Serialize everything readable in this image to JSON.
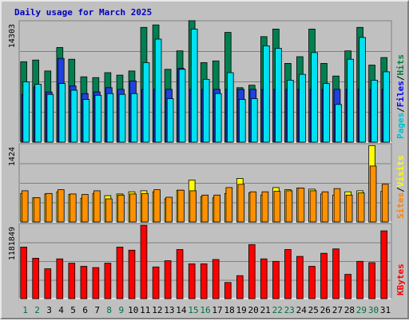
{
  "chart_data": [
    {
      "type": "bar",
      "title": "Daily usage for March 2025",
      "ymax_label": "14303",
      "ylim": [
        0,
        14303
      ],
      "legend": [
        {
          "label": "Pages",
          "color": "#00c0d0"
        },
        {
          "label": "Files",
          "color": "#0000ff"
        },
        {
          "label": "Hits",
          "color": "#008040"
        }
      ],
      "separator": "/",
      "categories": [
        "1",
        "2",
        "3",
        "4",
        "5",
        "6",
        "7",
        "8",
        "9",
        "10",
        "11",
        "12",
        "13",
        "14",
        "15",
        "16",
        "17",
        "18",
        "19",
        "20",
        "21",
        "22",
        "23",
        "24",
        "25",
        "26",
        "27",
        "28",
        "29",
        "30",
        "31"
      ],
      "series": [
        {
          "name": "Hits",
          "color": "#008050",
          "values": [
            9600,
            9800,
            8500,
            11300,
            9900,
            7800,
            7700,
            8300,
            8000,
            8500,
            13700,
            14000,
            8700,
            10900,
            14500,
            9500,
            9700,
            13100,
            6500,
            6800,
            12600,
            13500,
            9400,
            10200,
            13500,
            9400,
            7900,
            10900,
            13700,
            9200,
            10100
          ]
        },
        {
          "name": "Files",
          "color": "#2040e0",
          "values": [
            5700,
            6600,
            6000,
            10000,
            6700,
            5800,
            6000,
            6500,
            6300,
            7300,
            6300,
            6300,
            6300,
            8800,
            6300,
            6300,
            6300,
            6300,
            6300,
            6300,
            6300,
            6300,
            6300,
            6300,
            6300,
            6300,
            6300,
            6300,
            6300,
            6300,
            6300
          ]
        },
        {
          "name": "Pages",
          "color": "#00e0f0",
          "values": [
            7200,
            6900,
            5700,
            7000,
            6200,
            5100,
            5600,
            5800,
            5700,
            5800,
            9500,
            12300,
            5200,
            8700,
            13500,
            7500,
            5800,
            8300,
            5100,
            5200,
            11500,
            11200,
            7400,
            8100,
            10700,
            7000,
            4500,
            9900,
            12500,
            7400,
            8400
          ]
        }
      ]
    },
    {
      "type": "bar",
      "ymax_label": "1424",
      "ylim": [
        0,
        1424
      ],
      "legend": [
        {
          "label": "Sites",
          "color": "#ff8000"
        },
        {
          "label": "Visits",
          "color": "#ffff00"
        }
      ],
      "separator": "/",
      "series": [
        {
          "name": "Visits",
          "color": "#ffff00",
          "values": [
            530,
            450,
            520,
            560,
            510,
            440,
            530,
            490,
            520,
            560,
            580,
            560,
            430,
            590,
            780,
            470,
            450,
            530,
            810,
            540,
            500,
            640,
            600,
            630,
            610,
            520,
            500,
            560,
            580,
            1420,
            570
          ]
        },
        {
          "name": "Sites",
          "color": "#ff9000",
          "values": [
            580,
            450,
            530,
            600,
            520,
            510,
            580,
            430,
            500,
            520,
            530,
            600,
            460,
            590,
            580,
            500,
            500,
            640,
            700,
            560,
            560,
            570,
            580,
            630,
            580,
            560,
            620,
            500,
            540,
            1040,
            700
          ]
        }
      ]
    },
    {
      "type": "bar",
      "ymax_label": "1181849",
      "ylim": [
        0,
        1181849
      ],
      "legend": [
        {
          "label": "KBytes",
          "color": "#ff0000"
        }
      ],
      "series": [
        {
          "name": "KBytes",
          "color": "#ff0000",
          "values": [
            830000,
            650000,
            480000,
            640000,
            570000,
            520000,
            500000,
            570000,
            830000,
            780000,
            1180000,
            510000,
            610000,
            790000,
            560000,
            560000,
            630000,
            260000,
            370000,
            870000,
            640000,
            600000,
            790000,
            680000,
            520000,
            730000,
            800000,
            390000,
            600000,
            580000,
            1090000
          ]
        }
      ]
    }
  ]
}
